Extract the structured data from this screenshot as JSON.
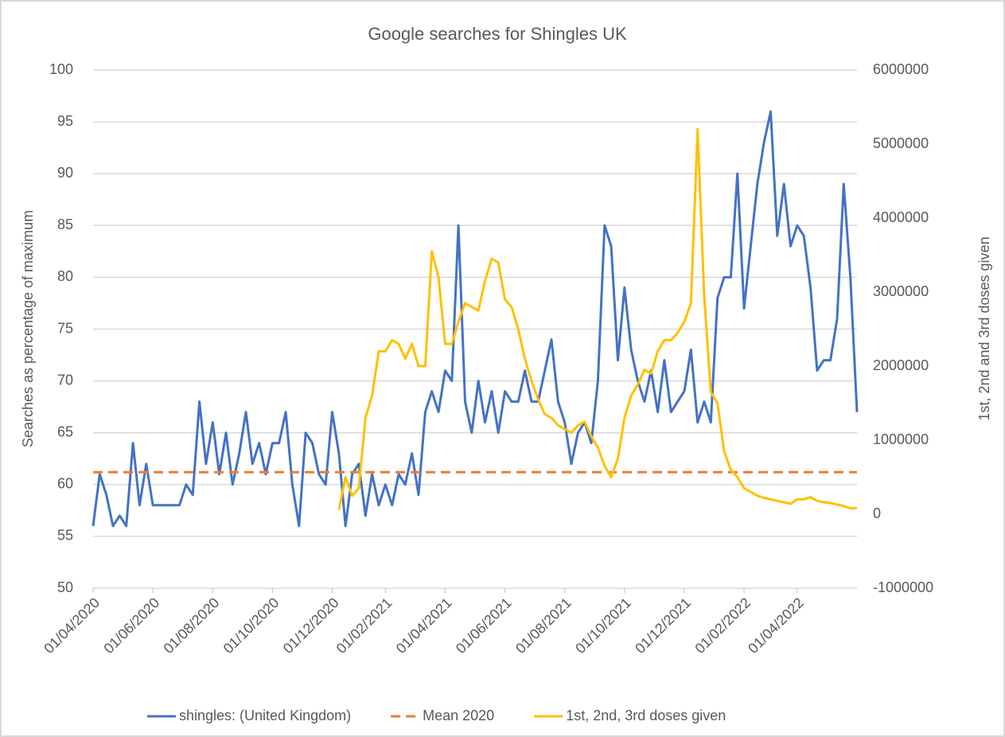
{
  "chart_data": {
    "type": "line",
    "title": "Google searches for Shingles UK",
    "y_label": "Searches as percentage of maximum",
    "y2_label": "1st, 2nd and 3rd doses given",
    "categories": [
      "01/04/2020",
      null,
      null,
      null,
      null,
      null,
      null,
      null,
      null,
      "01/06/2020",
      null,
      null,
      null,
      null,
      null,
      null,
      null,
      null,
      "01/08/2020",
      null,
      null,
      null,
      null,
      null,
      null,
      null,
      null,
      "01/10/2020",
      null,
      null,
      null,
      null,
      null,
      null,
      null,
      null,
      "01/12/2020",
      null,
      null,
      null,
      null,
      null,
      null,
      null,
      "01/02/2021",
      null,
      null,
      null,
      null,
      null,
      null,
      null,
      null,
      "01/04/2021",
      null,
      null,
      null,
      null,
      null,
      null,
      null,
      null,
      "01/06/2021",
      null,
      null,
      null,
      null,
      null,
      null,
      null,
      null,
      "01/08/2021",
      null,
      null,
      null,
      null,
      null,
      null,
      null,
      null,
      "01/10/2021",
      null,
      null,
      null,
      null,
      null,
      null,
      null,
      null,
      "01/12/2021",
      null,
      null,
      null,
      null,
      null,
      null,
      null,
      null,
      "01/02/2022",
      null,
      null,
      null,
      null,
      null,
      null,
      null,
      "01/04/2022",
      null,
      null,
      null,
      null,
      null,
      null,
      null,
      null,
      null
    ],
    "series": [
      {
        "name": "shingles: (United Kingdom)",
        "color": "#4472c4",
        "dash": false,
        "axis": "y",
        "values": [
          56,
          61,
          59,
          56,
          57,
          56,
          64,
          58,
          62,
          58,
          58,
          58,
          58,
          58,
          60,
          59,
          68,
          62,
          66,
          61,
          65,
          60,
          63,
          67,
          62,
          64,
          61,
          64,
          64,
          67,
          60,
          56,
          65,
          64,
          61,
          60,
          67,
          63,
          56,
          61,
          62,
          57,
          61,
          58,
          60,
          58,
          61,
          60,
          63,
          59,
          67,
          69,
          67,
          71,
          70,
          85,
          68,
          65,
          70,
          66,
          69,
          65,
          69,
          68,
          68,
          71,
          68,
          68,
          71,
          74,
          68,
          66,
          62,
          65,
          66,
          64,
          70,
          85,
          83,
          72,
          79,
          73,
          70,
          68,
          71,
          67,
          72,
          67,
          68,
          69,
          73,
          66,
          68,
          66,
          78,
          80,
          80,
          90,
          77,
          83,
          89,
          93,
          96,
          84,
          89,
          83,
          85,
          84,
          79,
          71,
          72,
          72,
          76,
          89,
          80,
          67
        ]
      },
      {
        "name": "Mean 2020",
        "color": "#ed7d31",
        "dash": true,
        "axis": "y",
        "values": [
          61.2,
          61.2,
          61.2,
          61.2,
          61.2,
          61.2,
          61.2,
          61.2,
          61.2,
          61.2,
          61.2,
          61.2,
          61.2,
          61.2,
          61.2,
          61.2,
          61.2,
          61.2,
          61.2,
          61.2,
          61.2,
          61.2,
          61.2,
          61.2,
          61.2,
          61.2,
          61.2,
          61.2,
          61.2,
          61.2,
          61.2,
          61.2,
          61.2,
          61.2,
          61.2,
          61.2,
          61.2,
          61.2,
          61.2,
          61.2,
          61.2,
          61.2,
          61.2,
          61.2,
          61.2,
          61.2,
          61.2,
          61.2,
          61.2,
          61.2,
          61.2,
          61.2,
          61.2,
          61.2,
          61.2,
          61.2,
          61.2,
          61.2,
          61.2,
          61.2,
          61.2,
          61.2,
          61.2,
          61.2,
          61.2,
          61.2,
          61.2,
          61.2,
          61.2,
          61.2,
          61.2,
          61.2,
          61.2,
          61.2,
          61.2,
          61.2,
          61.2,
          61.2,
          61.2,
          61.2,
          61.2,
          61.2,
          61.2,
          61.2,
          61.2,
          61.2,
          61.2,
          61.2,
          61.2,
          61.2,
          61.2,
          61.2,
          61.2,
          61.2,
          61.2,
          61.2,
          61.2,
          61.2,
          61.2,
          61.2,
          61.2,
          61.2,
          61.2,
          61.2,
          61.2,
          61.2,
          61.2,
          61.2,
          61.2,
          61.2,
          61.2,
          61.2,
          61.2,
          61.2,
          61.2,
          61.2
        ]
      },
      {
        "name": "1st, 2nd, 3rd doses given",
        "color": "#ffc000",
        "dash": false,
        "axis": "y2",
        "values": [
          null,
          null,
          null,
          null,
          null,
          null,
          null,
          null,
          null,
          null,
          null,
          null,
          null,
          null,
          null,
          null,
          null,
          null,
          null,
          null,
          null,
          null,
          null,
          null,
          null,
          null,
          null,
          null,
          null,
          null,
          null,
          null,
          null,
          null,
          null,
          null,
          null,
          60000,
          500000,
          250000,
          350000,
          1300000,
          1600000,
          2200000,
          2200000,
          2350000,
          2300000,
          2100000,
          2300000,
          2000000,
          2000000,
          3550000,
          3200000,
          2300000,
          2300000,
          2600000,
          2850000,
          2800000,
          2750000,
          3150000,
          3450000,
          3400000,
          2900000,
          2800000,
          2500000,
          2100000,
          1800000,
          1550000,
          1350000,
          1300000,
          1200000,
          1150000,
          1100000,
          1200000,
          1250000,
          1050000,
          900000,
          650000,
          500000,
          750000,
          1300000,
          1600000,
          1750000,
          1950000,
          1900000,
          2200000,
          2350000,
          2350000,
          2450000,
          2600000,
          2850000,
          5200000,
          2950000,
          1650000,
          1500000,
          850000,
          600000,
          500000,
          350000,
          300000,
          250000,
          220000,
          200000,
          180000,
          160000,
          140000,
          200000,
          200000,
          230000,
          180000,
          160000,
          150000,
          130000,
          110000,
          80000,
          80000
        ]
      }
    ],
    "ylim": [
      50,
      100
    ],
    "yticks": [
      50,
      55,
      60,
      65,
      70,
      75,
      80,
      85,
      90,
      95,
      100
    ],
    "y2lim": [
      -1000000,
      6000000
    ],
    "y2ticks": [
      -1000000,
      0,
      1000000,
      2000000,
      3000000,
      4000000,
      5000000,
      6000000
    ],
    "grid": true,
    "legend": "bottom"
  }
}
